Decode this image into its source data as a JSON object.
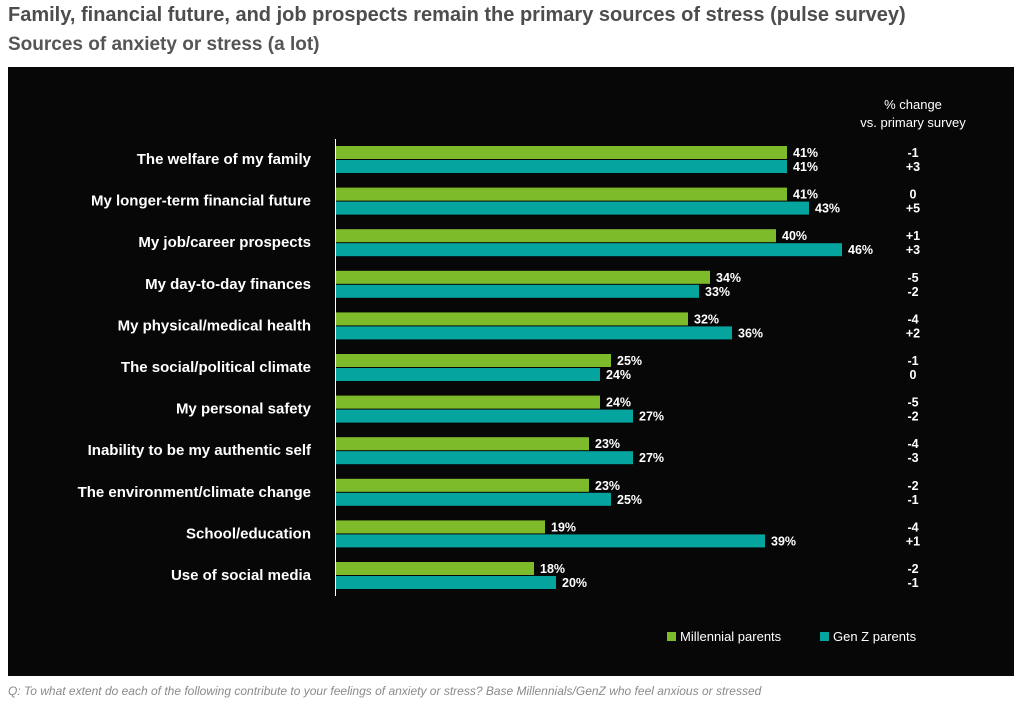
{
  "header": {
    "title": "Family, financial future, and job prospects remain the primary sources of stress (pulse survey)",
    "subtitle": "Sources of anxiety or stress (a lot)"
  },
  "footnote": "Q: To what extent do each of the following contribute to your feelings of anxiety or stress? Base Millennials/GenZ who feel anxious or stressed",
  "chart_data": {
    "type": "bar",
    "orientation": "horizontal",
    "categories": [
      "The welfare of my family",
      "My longer-term financial future",
      "My job/career prospects",
      "My day-to-day finances",
      "My physical/medical health",
      "The social/political climate",
      "My personal safety",
      "Inability to be my authentic self",
      "The environment/climate change",
      "School/education",
      "Use of social media"
    ],
    "series": [
      {
        "name": "Millennial parents",
        "color": "#7dbb2a",
        "values": [
          41,
          41,
          40,
          34,
          32,
          25,
          24,
          23,
          23,
          19,
          18
        ],
        "labels": [
          "41%",
          "41%",
          "40%",
          "34%",
          "32%",
          "25%",
          "24%",
          "23%",
          "23%",
          "19%",
          "18%"
        ],
        "change": [
          "-1",
          "0",
          "+1",
          "-5",
          "-4",
          "-1",
          "-5",
          "-4",
          "-2",
          "-4",
          "-2"
        ]
      },
      {
        "name": "Gen Z parents",
        "color": "#05a49e",
        "values": [
          41,
          43,
          46,
          33,
          36,
          24,
          27,
          27,
          25,
          39,
          20
        ],
        "labels": [
          "41%",
          "43%",
          "46%",
          "33%",
          "36%",
          "24%",
          "27%",
          "27%",
          "25%",
          "39%",
          "20%"
        ],
        "change": [
          "+3",
          "+5",
          "+3",
          "-2",
          "+2",
          "0",
          "-2",
          "-3",
          "-1",
          "+1",
          "-1"
        ]
      }
    ],
    "change_header": [
      "% change",
      "vs. primary survey"
    ],
    "xlim": [
      0,
      100
    ],
    "grid": false,
    "legend_position": "bottom-right",
    "background": "#070707"
  }
}
